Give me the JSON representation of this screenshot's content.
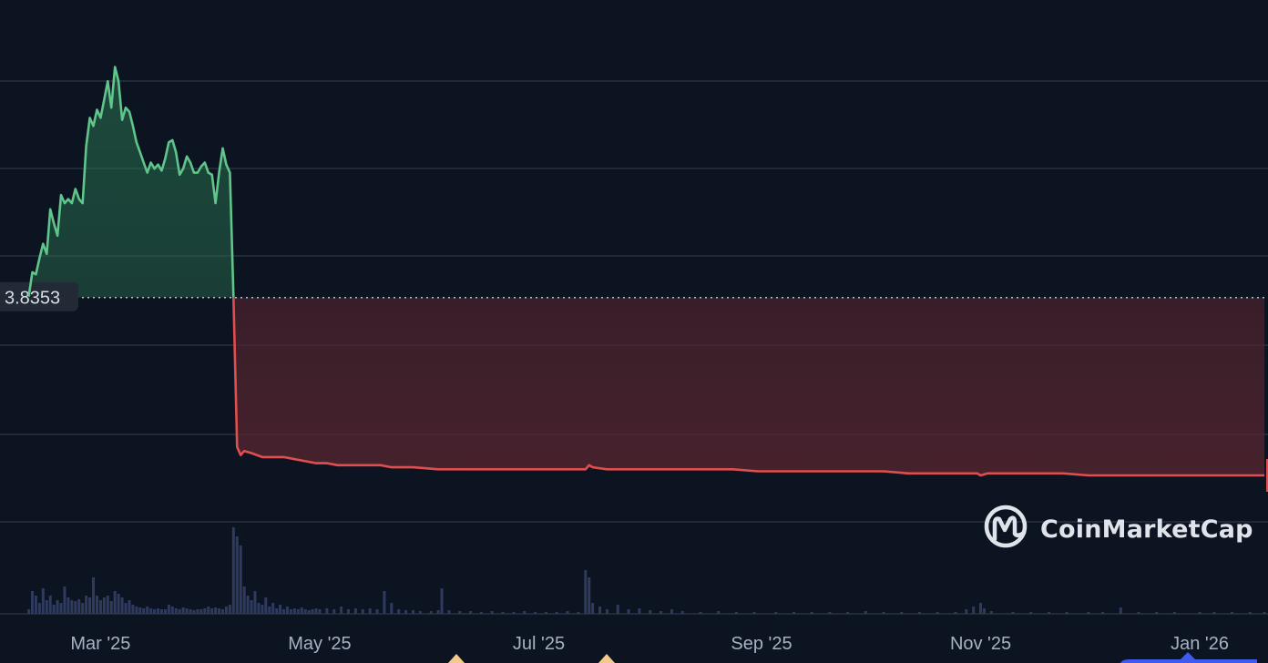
{
  "chart_data": {
    "type": "line",
    "x_unit": "date",
    "x_range": [
      "2025-02-01",
      "2026-01-20"
    ],
    "y_range": [
      2.7,
      5.3
    ],
    "grid": true,
    "title": "",
    "xlabel": "",
    "ylabel": "",
    "reference_line": {
      "value": 3.8353,
      "label": "3.8353"
    },
    "x_ticks": [
      {
        "date": "2025-03-01",
        "label": "Mar '25"
      },
      {
        "date": "2025-05-01",
        "label": "May '25"
      },
      {
        "date": "2025-07-01",
        "label": "Jul '25"
      },
      {
        "date": "2025-09-01",
        "label": "Sep '25"
      },
      {
        "date": "2025-11-01",
        "label": "Nov '25"
      },
      {
        "date": "2026-01-01",
        "label": "Jan '26"
      }
    ],
    "series": [
      {
        "points": [
          [
            "2025-02-09",
            3.84
          ],
          [
            "2025-02-10",
            3.96
          ],
          [
            "2025-02-11",
            3.95
          ],
          [
            "2025-02-12",
            4.03
          ],
          [
            "2025-02-13",
            4.1
          ],
          [
            "2025-02-14",
            4.05
          ],
          [
            "2025-02-15",
            4.27
          ],
          [
            "2025-02-16",
            4.2
          ],
          [
            "2025-02-17",
            4.14
          ],
          [
            "2025-02-18",
            4.34
          ],
          [
            "2025-02-19",
            4.3
          ],
          [
            "2025-02-20",
            4.32
          ],
          [
            "2025-02-21",
            4.3
          ],
          [
            "2025-02-22",
            4.37
          ],
          [
            "2025-02-23",
            4.32
          ],
          [
            "2025-02-24",
            4.3
          ],
          [
            "2025-02-25",
            4.58
          ],
          [
            "2025-02-26",
            4.72
          ],
          [
            "2025-02-27",
            4.68
          ],
          [
            "2025-02-28",
            4.76
          ],
          [
            "2025-03-01",
            4.72
          ],
          [
            "2025-03-02",
            4.81
          ],
          [
            "2025-03-03",
            4.9
          ],
          [
            "2025-03-04",
            4.77
          ],
          [
            "2025-03-05",
            4.97
          ],
          [
            "2025-03-06",
            4.9
          ],
          [
            "2025-03-07",
            4.71
          ],
          [
            "2025-03-08",
            4.77
          ],
          [
            "2025-03-09",
            4.75
          ],
          [
            "2025-03-10",
            4.68
          ],
          [
            "2025-03-11",
            4.6
          ],
          [
            "2025-03-12",
            4.55
          ],
          [
            "2025-03-13",
            4.5
          ],
          [
            "2025-03-14",
            4.45
          ],
          [
            "2025-03-15",
            4.5
          ],
          [
            "2025-03-16",
            4.47
          ],
          [
            "2025-03-17",
            4.49
          ],
          [
            "2025-03-18",
            4.46
          ],
          [
            "2025-03-19",
            4.52
          ],
          [
            "2025-03-20",
            4.6
          ],
          [
            "2025-03-21",
            4.61
          ],
          [
            "2025-03-22",
            4.55
          ],
          [
            "2025-03-23",
            4.44
          ],
          [
            "2025-03-24",
            4.47
          ],
          [
            "2025-03-25",
            4.53
          ],
          [
            "2025-03-26",
            4.5
          ],
          [
            "2025-03-27",
            4.45
          ],
          [
            "2025-03-28",
            4.45
          ],
          [
            "2025-03-29",
            4.48
          ],
          [
            "2025-03-30",
            4.5
          ],
          [
            "2025-03-31",
            4.45
          ],
          [
            "2025-04-01",
            4.44
          ],
          [
            "2025-04-02",
            4.3
          ],
          [
            "2025-04-03",
            4.45
          ],
          [
            "2025-04-04",
            4.57
          ],
          [
            "2025-04-05",
            4.49
          ],
          [
            "2025-04-06",
            4.45
          ],
          [
            "2025-04-07",
            3.84
          ],
          [
            "2025-04-08",
            3.1
          ],
          [
            "2025-04-09",
            3.06
          ],
          [
            "2025-04-10",
            3.08
          ],
          [
            "2025-04-12",
            3.07
          ],
          [
            "2025-04-15",
            3.05
          ],
          [
            "2025-04-18",
            3.05
          ],
          [
            "2025-04-21",
            3.05
          ],
          [
            "2025-04-24",
            3.04
          ],
          [
            "2025-04-27",
            3.03
          ],
          [
            "2025-04-30",
            3.02
          ],
          [
            "2025-05-03",
            3.02
          ],
          [
            "2025-05-06",
            3.01
          ],
          [
            "2025-05-09",
            3.01
          ],
          [
            "2025-05-12",
            3.01
          ],
          [
            "2025-05-15",
            3.01
          ],
          [
            "2025-05-18",
            3.01
          ],
          [
            "2025-05-21",
            3.0
          ],
          [
            "2025-05-27",
            3.0
          ],
          [
            "2025-06-03",
            2.99
          ],
          [
            "2025-06-10",
            2.99
          ],
          [
            "2025-06-17",
            2.99
          ],
          [
            "2025-06-24",
            2.99
          ],
          [
            "2025-07-01",
            2.99
          ],
          [
            "2025-07-08",
            2.99
          ],
          [
            "2025-07-14",
            2.99
          ],
          [
            "2025-07-15",
            3.01
          ],
          [
            "2025-07-16",
            3.0
          ],
          [
            "2025-07-20",
            2.99
          ],
          [
            "2025-07-27",
            2.99
          ],
          [
            "2025-08-03",
            2.99
          ],
          [
            "2025-08-10",
            2.99
          ],
          [
            "2025-08-17",
            2.99
          ],
          [
            "2025-08-24",
            2.99
          ],
          [
            "2025-08-31",
            2.98
          ],
          [
            "2025-09-07",
            2.98
          ],
          [
            "2025-09-14",
            2.98
          ],
          [
            "2025-09-21",
            2.98
          ],
          [
            "2025-09-28",
            2.98
          ],
          [
            "2025-10-05",
            2.98
          ],
          [
            "2025-10-12",
            2.97
          ],
          [
            "2025-10-19",
            2.97
          ],
          [
            "2025-10-26",
            2.97
          ],
          [
            "2025-10-31",
            2.97
          ],
          [
            "2025-11-01",
            2.96
          ],
          [
            "2025-11-03",
            2.97
          ],
          [
            "2025-11-10",
            2.97
          ],
          [
            "2025-11-17",
            2.97
          ],
          [
            "2025-11-24",
            2.97
          ],
          [
            "2025-12-01",
            2.96
          ],
          [
            "2025-12-08",
            2.96
          ],
          [
            "2025-12-15",
            2.96
          ],
          [
            "2025-12-22",
            2.96
          ],
          [
            "2025-12-29",
            2.96
          ],
          [
            "2026-01-05",
            2.96
          ],
          [
            "2026-01-12",
            2.96
          ],
          [
            "2026-01-19",
            2.96
          ]
        ]
      }
    ],
    "volume": {
      "y_range": [
        0,
        1.0
      ],
      "points": [
        [
          "2025-02-09",
          0.05
        ],
        [
          "2025-02-10",
          0.25
        ],
        [
          "2025-02-11",
          0.2
        ],
        [
          "2025-02-12",
          0.12
        ],
        [
          "2025-02-13",
          0.28
        ],
        [
          "2025-02-14",
          0.15
        ],
        [
          "2025-02-15",
          0.2
        ],
        [
          "2025-02-16",
          0.1
        ],
        [
          "2025-02-17",
          0.15
        ],
        [
          "2025-02-18",
          0.12
        ],
        [
          "2025-02-19",
          0.3
        ],
        [
          "2025-02-20",
          0.18
        ],
        [
          "2025-02-21",
          0.15
        ],
        [
          "2025-02-22",
          0.14
        ],
        [
          "2025-02-23",
          0.16
        ],
        [
          "2025-02-24",
          0.12
        ],
        [
          "2025-02-25",
          0.2
        ],
        [
          "2025-02-26",
          0.18
        ],
        [
          "2025-02-27",
          0.4
        ],
        [
          "2025-02-28",
          0.2
        ],
        [
          "2025-03-01",
          0.15
        ],
        [
          "2025-03-02",
          0.18
        ],
        [
          "2025-03-03",
          0.2
        ],
        [
          "2025-03-04",
          0.14
        ],
        [
          "2025-03-05",
          0.25
        ],
        [
          "2025-03-06",
          0.22
        ],
        [
          "2025-03-07",
          0.18
        ],
        [
          "2025-03-08",
          0.12
        ],
        [
          "2025-03-09",
          0.15
        ],
        [
          "2025-03-10",
          0.1
        ],
        [
          "2025-03-11",
          0.08
        ],
        [
          "2025-03-12",
          0.07
        ],
        [
          "2025-03-13",
          0.06
        ],
        [
          "2025-03-14",
          0.08
        ],
        [
          "2025-03-15",
          0.06
        ],
        [
          "2025-03-16",
          0.05
        ],
        [
          "2025-03-17",
          0.06
        ],
        [
          "2025-03-18",
          0.05
        ],
        [
          "2025-03-19",
          0.05
        ],
        [
          "2025-03-20",
          0.1
        ],
        [
          "2025-03-21",
          0.08
        ],
        [
          "2025-03-22",
          0.06
        ],
        [
          "2025-03-23",
          0.05
        ],
        [
          "2025-03-24",
          0.07
        ],
        [
          "2025-03-25",
          0.06
        ],
        [
          "2025-03-26",
          0.05
        ],
        [
          "2025-03-27",
          0.04
        ],
        [
          "2025-03-28",
          0.05
        ],
        [
          "2025-03-29",
          0.05
        ],
        [
          "2025-03-30",
          0.06
        ],
        [
          "2025-03-31",
          0.08
        ],
        [
          "2025-04-01",
          0.06
        ],
        [
          "2025-04-02",
          0.07
        ],
        [
          "2025-04-03",
          0.06
        ],
        [
          "2025-04-04",
          0.05
        ],
        [
          "2025-04-05",
          0.08
        ],
        [
          "2025-04-06",
          0.1
        ],
        [
          "2025-04-07",
          0.95
        ],
        [
          "2025-04-08",
          0.85
        ],
        [
          "2025-04-09",
          0.75
        ],
        [
          "2025-04-10",
          0.3
        ],
        [
          "2025-04-11",
          0.2
        ],
        [
          "2025-04-12",
          0.15
        ],
        [
          "2025-04-13",
          0.25
        ],
        [
          "2025-04-14",
          0.12
        ],
        [
          "2025-04-15",
          0.1
        ],
        [
          "2025-04-16",
          0.18
        ],
        [
          "2025-04-17",
          0.08
        ],
        [
          "2025-04-18",
          0.12
        ],
        [
          "2025-04-19",
          0.06
        ],
        [
          "2025-04-20",
          0.1
        ],
        [
          "2025-04-21",
          0.05
        ],
        [
          "2025-04-22",
          0.08
        ],
        [
          "2025-04-23",
          0.05
        ],
        [
          "2025-04-24",
          0.06
        ],
        [
          "2025-04-25",
          0.05
        ],
        [
          "2025-04-26",
          0.07
        ],
        [
          "2025-04-27",
          0.05
        ],
        [
          "2025-04-28",
          0.04
        ],
        [
          "2025-04-29",
          0.05
        ],
        [
          "2025-04-30",
          0.06
        ],
        [
          "2025-05-01",
          0.05
        ],
        [
          "2025-05-03",
          0.06
        ],
        [
          "2025-05-05",
          0.05
        ],
        [
          "2025-05-07",
          0.08
        ],
        [
          "2025-05-09",
          0.05
        ],
        [
          "2025-05-11",
          0.06
        ],
        [
          "2025-05-13",
          0.05
        ],
        [
          "2025-05-15",
          0.06
        ],
        [
          "2025-05-17",
          0.05
        ],
        [
          "2025-05-19",
          0.25
        ],
        [
          "2025-05-21",
          0.12
        ],
        [
          "2025-05-23",
          0.05
        ],
        [
          "2025-05-25",
          0.04
        ],
        [
          "2025-05-27",
          0.04
        ],
        [
          "2025-05-29",
          0.03
        ],
        [
          "2025-06-01",
          0.03
        ],
        [
          "2025-06-03",
          0.04
        ],
        [
          "2025-06-04",
          0.28
        ],
        [
          "2025-06-06",
          0.04
        ],
        [
          "2025-06-09",
          0.03
        ],
        [
          "2025-06-12",
          0.03
        ],
        [
          "2025-06-15",
          0.02
        ],
        [
          "2025-06-18",
          0.03
        ],
        [
          "2025-06-21",
          0.02
        ],
        [
          "2025-06-24",
          0.02
        ],
        [
          "2025-06-27",
          0.03
        ],
        [
          "2025-06-30",
          0.02
        ],
        [
          "2025-07-03",
          0.02
        ],
        [
          "2025-07-06",
          0.02
        ],
        [
          "2025-07-09",
          0.03
        ],
        [
          "2025-07-12",
          0.02
        ],
        [
          "2025-07-14",
          0.48
        ],
        [
          "2025-07-15",
          0.4
        ],
        [
          "2025-07-16",
          0.12
        ],
        [
          "2025-07-18",
          0.08
        ],
        [
          "2025-07-20",
          0.05
        ],
        [
          "2025-07-23",
          0.1
        ],
        [
          "2025-07-26",
          0.05
        ],
        [
          "2025-07-29",
          0.06
        ],
        [
          "2025-08-01",
          0.04
        ],
        [
          "2025-08-04",
          0.03
        ],
        [
          "2025-08-07",
          0.05
        ],
        [
          "2025-08-10",
          0.03
        ],
        [
          "2025-08-15",
          0.02
        ],
        [
          "2025-08-20",
          0.03
        ],
        [
          "2025-08-25",
          0.02
        ],
        [
          "2025-08-30",
          0.02
        ],
        [
          "2025-09-05",
          0.02
        ],
        [
          "2025-09-10",
          0.02
        ],
        [
          "2025-09-15",
          0.02
        ],
        [
          "2025-09-20",
          0.02
        ],
        [
          "2025-09-25",
          0.02
        ],
        [
          "2025-09-30",
          0.03
        ],
        [
          "2025-10-05",
          0.02
        ],
        [
          "2025-10-10",
          0.02
        ],
        [
          "2025-10-15",
          0.02
        ],
        [
          "2025-10-20",
          0.02
        ],
        [
          "2025-10-25",
          0.02
        ],
        [
          "2025-10-28",
          0.05
        ],
        [
          "2025-10-30",
          0.08
        ],
        [
          "2025-11-01",
          0.12
        ],
        [
          "2025-11-02",
          0.06
        ],
        [
          "2025-11-04",
          0.03
        ],
        [
          "2025-11-10",
          0.02
        ],
        [
          "2025-11-15",
          0.02
        ],
        [
          "2025-11-20",
          0.02
        ],
        [
          "2025-11-25",
          0.02
        ],
        [
          "2025-12-01",
          0.02
        ],
        [
          "2025-12-05",
          0.02
        ],
        [
          "2025-12-10",
          0.07
        ],
        [
          "2025-12-15",
          0.02
        ],
        [
          "2025-12-20",
          0.02
        ],
        [
          "2025-12-25",
          0.02
        ],
        [
          "2026-01-01",
          0.02
        ],
        [
          "2026-01-05",
          0.02
        ],
        [
          "2026-01-10",
          0.02
        ],
        [
          "2026-01-15",
          0.02
        ],
        [
          "2026-01-19",
          0.02
        ]
      ]
    },
    "colors": {
      "background": "#0d1421",
      "grid": "#2a3140",
      "up_line": "#5fc58a",
      "down_line": "#e04f4f",
      "volume_bar": "#2f3b5e",
      "reference_line": "#b8bfcc",
      "tick_label": "#a7b1c2"
    }
  },
  "watermark": {
    "text": "CoinMarketCap",
    "icon": "coinmarketcap-logo-icon"
  }
}
